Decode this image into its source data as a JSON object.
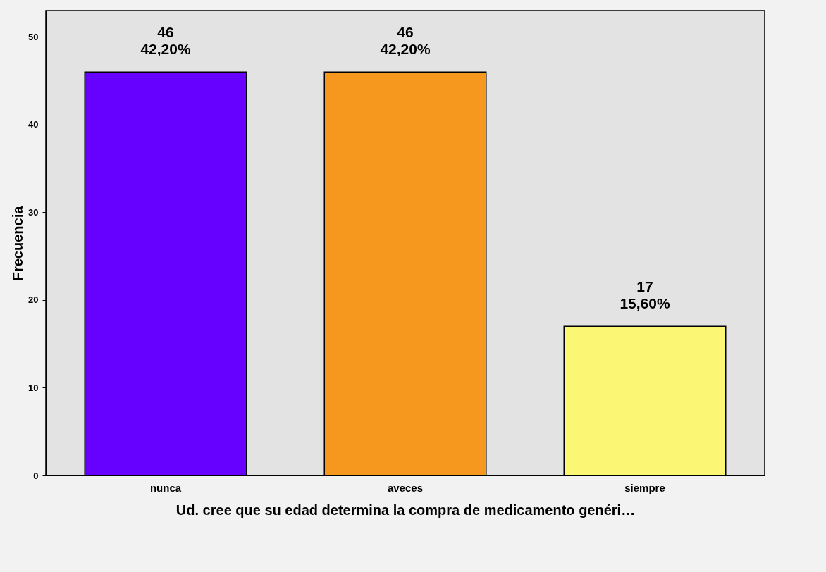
{
  "chart_data": {
    "type": "bar",
    "xlabel": "Ud. cree que su edad determina la compra de medicamento genéri…",
    "ylabel": "Frecuencia",
    "categories": [
      "nunca",
      "aveces",
      "siempre"
    ],
    "values": [
      46,
      46,
      17
    ],
    "colors": [
      "#6600ff",
      "#f7981e",
      "#fbf775"
    ],
    "value_labels": [
      "46\n42,20%",
      "46\n42,20%",
      "17\n15,60%"
    ],
    "ylim": [
      0,
      53
    ],
    "yticks": [
      0,
      10,
      20,
      30,
      40,
      50
    ],
    "grid": false,
    "legend": false
  }
}
